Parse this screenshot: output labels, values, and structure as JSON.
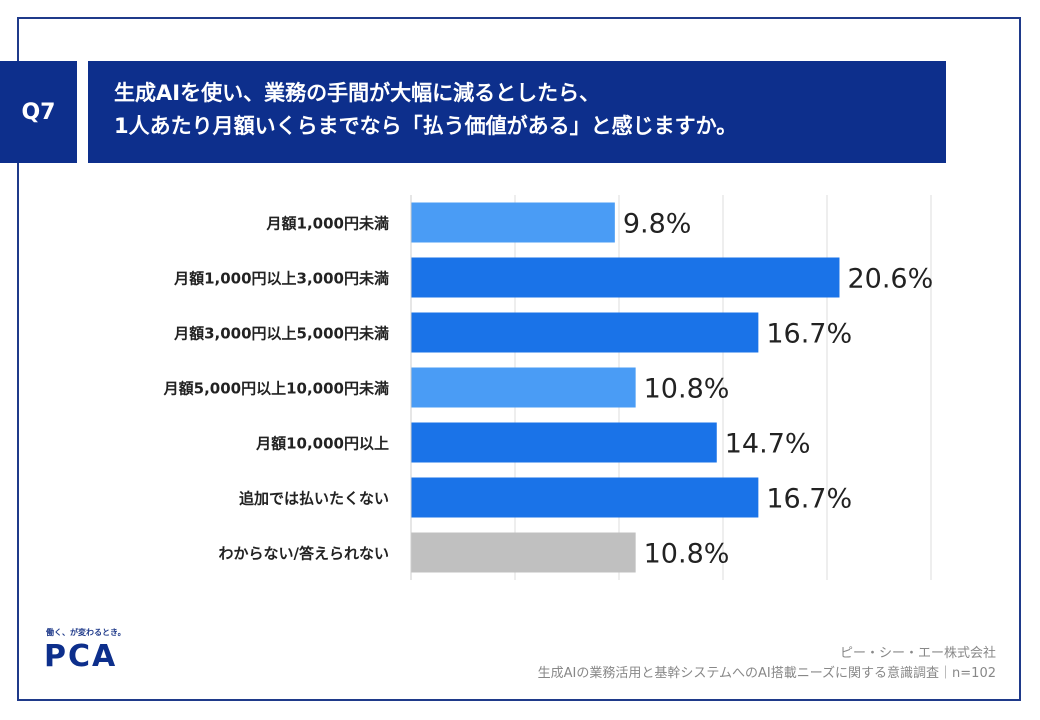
{
  "question": {
    "badge": "Q7",
    "title_line1": "生成AIを使い、業務の手間が大幅に減るとしたら、",
    "title_line2": "1人あたり月額いくらまでなら「払う価値がある」と感じますか。"
  },
  "chart_data": {
    "type": "bar",
    "orientation": "horizontal",
    "categories": [
      "月額1,000円未満",
      "月額1,000円以上3,000円未満",
      "月額3,000円以上5,000円未満",
      "月額5,000円以上10,000円未満",
      "月額10,000円以上",
      "追加では払いたくない",
      "わからない/答えられない"
    ],
    "values": [
      9.8,
      20.6,
      16.7,
      10.8,
      14.7,
      16.7,
      10.8
    ],
    "value_labels": [
      "9.8%",
      "20.6%",
      "16.7%",
      "10.8%",
      "14.7%",
      "16.7%",
      "10.8%"
    ],
    "xlim": [
      0,
      25
    ],
    "grid": true,
    "colors": {
      "highlight": "#1a73e8",
      "normal": "#4a9cf5",
      "neutral": "#c0c0c0"
    },
    "bar_color_keys": [
      "normal",
      "highlight",
      "highlight",
      "normal",
      "highlight",
      "highlight",
      "neutral"
    ]
  },
  "branding": {
    "tagline": "働く、が変わるとき。",
    "logo_text": "PCA"
  },
  "footer": {
    "company": "ピー・シー・エー株式会社",
    "survey": "生成AIの業務活用と基幹システムへのAI搭載ニーズに関する意識調査｜n=102"
  },
  "colors": {
    "navy": "#0d2f8c"
  }
}
